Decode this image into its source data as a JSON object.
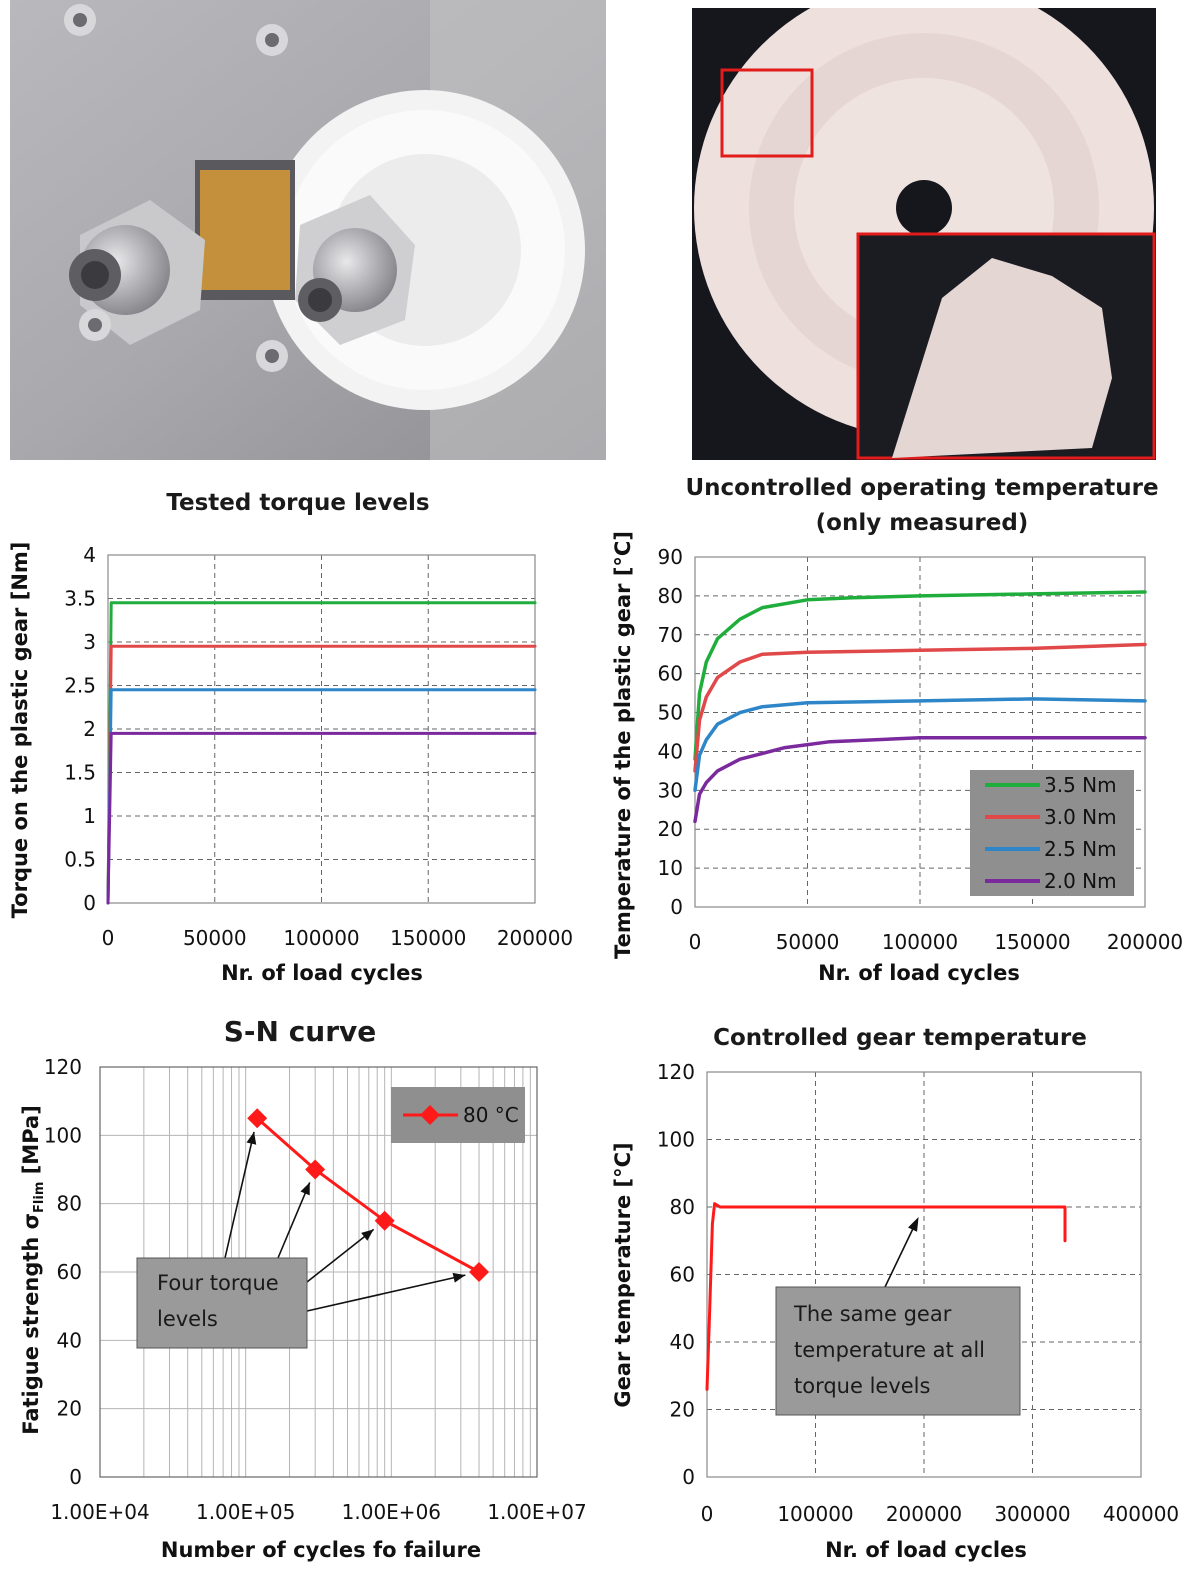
{
  "photos": {
    "left": {
      "name": "gear test rig photo"
    },
    "right": {
      "name": "worn plastic gear photo"
    }
  },
  "colors": {
    "green": "#1fae3b",
    "red": "#e0484a",
    "blue": "#2e86c9",
    "purple": "#7a2a9c",
    "sn_red": "#ff1a1a",
    "legend_bg": "#8f8f8f",
    "annotation_bg": "#9a9a9a"
  },
  "chart_data": [
    {
      "id": "torque",
      "type": "line",
      "title": "Tested torque levels",
      "xlabel": "Nr. of load cycles",
      "ylabel": "Torque on the plastic gear [Nm]",
      "xlim": [
        0,
        200000
      ],
      "ylim": [
        0,
        4
      ],
      "xticks": [
        "0",
        "50000",
        "100000",
        "150000",
        "200000"
      ],
      "yticks": [
        "0",
        "0.5",
        "1",
        "1.5",
        "2",
        "2.5",
        "3",
        "3.5",
        "4"
      ],
      "grid": true,
      "series": [
        {
          "color": "green",
          "values": [
            [
              0,
              0
            ],
            [
              1500,
              3.45
            ],
            [
              200000,
              3.45
            ]
          ]
        },
        {
          "color": "red",
          "values": [
            [
              0,
              0
            ],
            [
              1500,
              2.95
            ],
            [
              200000,
              2.95
            ]
          ]
        },
        {
          "color": "blue",
          "values": [
            [
              0,
              0
            ],
            [
              1500,
              2.45
            ],
            [
              200000,
              2.45
            ]
          ]
        },
        {
          "color": "purple",
          "values": [
            [
              0,
              0
            ],
            [
              1500,
              1.95
            ],
            [
              200000,
              1.95
            ]
          ]
        }
      ]
    },
    {
      "id": "temp",
      "type": "line",
      "title": "Uncontrolled operating temperature",
      "subtitle": "(only measured)",
      "xlabel": "Nr. of load cycles",
      "ylabel": "Temperature of the plastic gear [°C]",
      "xlim": [
        0,
        200000
      ],
      "ylim": [
        0,
        90
      ],
      "xticks": [
        "0",
        "50000",
        "100000",
        "150000",
        "200000"
      ],
      "yticks": [
        "0",
        "10",
        "20",
        "30",
        "40",
        "50",
        "60",
        "70",
        "80",
        "90"
      ],
      "grid": true,
      "legend": "bottom-right",
      "series": [
        {
          "name": "3.5 Nm",
          "color": "green",
          "values": [
            [
              0,
              38
            ],
            [
              2000,
              55
            ],
            [
              5000,
              63
            ],
            [
              10000,
              69
            ],
            [
              20000,
              74
            ],
            [
              30000,
              77
            ],
            [
              50000,
              79
            ],
            [
              70000,
              79.5
            ],
            [
              100000,
              80
            ],
            [
              150000,
              80.5
            ],
            [
              200000,
              81
            ]
          ]
        },
        {
          "name": "3.0 Nm",
          "color": "red",
          "values": [
            [
              0,
              35
            ],
            [
              2000,
              48
            ],
            [
              5000,
              54
            ],
            [
              10000,
              59
            ],
            [
              20000,
              63
            ],
            [
              30000,
              65
            ],
            [
              50000,
              65.5
            ],
            [
              100000,
              66
            ],
            [
              150000,
              66.5
            ],
            [
              200000,
              67.5
            ]
          ]
        },
        {
          "name": "2.5 Nm",
          "color": "blue",
          "values": [
            [
              0,
              30
            ],
            [
              2000,
              39
            ],
            [
              5000,
              43
            ],
            [
              10000,
              47
            ],
            [
              20000,
              50
            ],
            [
              30000,
              51.5
            ],
            [
              50000,
              52.5
            ],
            [
              100000,
              53
            ],
            [
              150000,
              53.5
            ],
            [
              200000,
              53
            ]
          ]
        },
        {
          "name": "2.0 Nm",
          "color": "purple",
          "values": [
            [
              0,
              22
            ],
            [
              2000,
              29
            ],
            [
              5000,
              32
            ],
            [
              10000,
              35
            ],
            [
              20000,
              38
            ],
            [
              40000,
              41
            ],
            [
              60000,
              42.5
            ],
            [
              100000,
              43.5
            ],
            [
              150000,
              43.5
            ],
            [
              200000,
              43.5
            ]
          ]
        }
      ]
    },
    {
      "id": "sn",
      "type": "line",
      "title": "S-N curve",
      "xlabel": "Number of cycles fo failure",
      "ylabel": "Fatigue strength σFlim [MPa]",
      "ylabel_parts": [
        "Fatigue strength σ",
        "Flim",
        " [MPa]"
      ],
      "xscale": "log",
      "xlim": [
        10000,
        10000000
      ],
      "ylim": [
        0,
        120
      ],
      "xticks": [
        "1.00E+04",
        "1.00E+05",
        "1.00E+06",
        "1.00E+07"
      ],
      "yticks": [
        "0",
        "20",
        "40",
        "60",
        "80",
        "100",
        "120"
      ],
      "grid": true,
      "legend": "top-right",
      "series": [
        {
          "name": "80 °C",
          "color": "sn_red",
          "values": [
            [
              120000,
              105
            ],
            [
              300000,
              90
            ],
            [
              900000,
              75
            ],
            [
              4000000,
              60
            ]
          ]
        }
      ],
      "annotation": {
        "lines": [
          "Four torque",
          "levels"
        ]
      }
    },
    {
      "id": "ctrl",
      "type": "line",
      "title": "Controlled gear temperature",
      "xlabel": "Nr. of load cycles",
      "ylabel": "Gear temperature [°C]",
      "xlim": [
        0,
        400000
      ],
      "ylim": [
        0,
        120
      ],
      "xticks": [
        "0",
        "100000",
        "200000",
        "300000",
        "400000"
      ],
      "yticks": [
        "0",
        "20",
        "40",
        "60",
        "80",
        "100",
        "120"
      ],
      "grid": true,
      "series": [
        {
          "color": "sn_red",
          "values": [
            [
              0,
              26
            ],
            [
              2000,
              45
            ],
            [
              5000,
              75
            ],
            [
              7000,
              81
            ],
            [
              12000,
              80
            ],
            [
              330000,
              80
            ],
            [
              330000,
              70
            ]
          ]
        }
      ],
      "annotation": {
        "lines": [
          "The same gear",
          "temperature at all",
          "torque levels"
        ]
      }
    }
  ]
}
